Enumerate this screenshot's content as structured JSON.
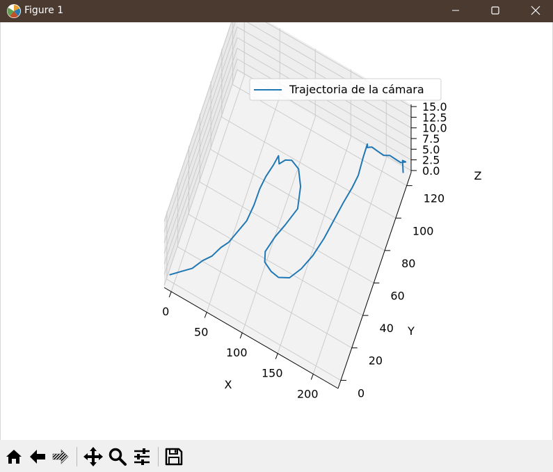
{
  "window": {
    "title": "Figure 1",
    "controls": [
      "minimize",
      "maximize",
      "close"
    ]
  },
  "toolbar": {
    "buttons": [
      {
        "name": "home",
        "icon": "home-icon"
      },
      {
        "name": "back",
        "icon": "arrow-left-icon"
      },
      {
        "name": "forward",
        "icon": "arrow-right-icon"
      },
      {
        "name": "pan",
        "icon": "move-icon"
      },
      {
        "name": "zoom",
        "icon": "magnifier-icon"
      },
      {
        "name": "configure",
        "icon": "sliders-icon"
      },
      {
        "name": "save",
        "icon": "save-icon"
      }
    ]
  },
  "chart_data": {
    "type": "line",
    "projection": "3d",
    "title": "",
    "xlabel": "X",
    "ylabel": "Y",
    "zlabel": "Z",
    "xlim": [
      -10,
      235
    ],
    "ylim": [
      -5,
      128
    ],
    "zlim": [
      -0.5,
      15.5
    ],
    "xticks": [
      "0",
      "50",
      "100",
      "150",
      "200"
    ],
    "yticks": [
      "0",
      "20",
      "40",
      "60",
      "80",
      "100",
      "120"
    ],
    "zticks": [
      "0.0",
      "2.5",
      "5.0",
      "7.5",
      "10.0",
      "12.5",
      "15.0"
    ],
    "grid": true,
    "legend_position": "top-right",
    "series": [
      {
        "name": "Trajectoria de la cámara",
        "color": "#1f77b4",
        "points": [
          [
            -8,
            2,
            0
          ],
          [
            5,
            6,
            0.5
          ],
          [
            18,
            10,
            1
          ],
          [
            28,
            16,
            1.5
          ],
          [
            38,
            20,
            2
          ],
          [
            46,
            26,
            2.5
          ],
          [
            54,
            30,
            3
          ],
          [
            62,
            36,
            4
          ],
          [
            70,
            42,
            5
          ],
          [
            74,
            50,
            6
          ],
          [
            76,
            58,
            7
          ],
          [
            80,
            64,
            8
          ],
          [
            86,
            70,
            9
          ],
          [
            90,
            74,
            10
          ],
          [
            94,
            70,
            10
          ],
          [
            98,
            76,
            9
          ],
          [
            104,
            80,
            8
          ],
          [
            112,
            82,
            6
          ],
          [
            118,
            78,
            4
          ],
          [
            120,
            70,
            2
          ],
          [
            110,
            60,
            1
          ],
          [
            102,
            52,
            0.5
          ],
          [
            96,
            42,
            0.3
          ],
          [
            100,
            36,
            0.5
          ],
          [
            112,
            32,
            1
          ],
          [
            124,
            30,
            1.5
          ],
          [
            138,
            32,
            2
          ],
          [
            150,
            38,
            3
          ],
          [
            160,
            46,
            4
          ],
          [
            168,
            56,
            5
          ],
          [
            174,
            66,
            6
          ],
          [
            180,
            76,
            7
          ],
          [
            186,
            84,
            8
          ],
          [
            190,
            90,
            9
          ],
          [
            192,
            96,
            11
          ],
          [
            195,
            100,
            13
          ],
          [
            198,
            96,
            14
          ],
          [
            200,
            102,
            12
          ],
          [
            204,
            106,
            10
          ],
          [
            210,
            110,
            8
          ],
          [
            216,
            114,
            7
          ],
          [
            222,
            116,
            6
          ],
          [
            228,
            118,
            5
          ],
          [
            232,
            122,
            4
          ],
          [
            226,
            124,
            3
          ],
          [
            230,
            120,
            2
          ]
        ]
      }
    ]
  }
}
